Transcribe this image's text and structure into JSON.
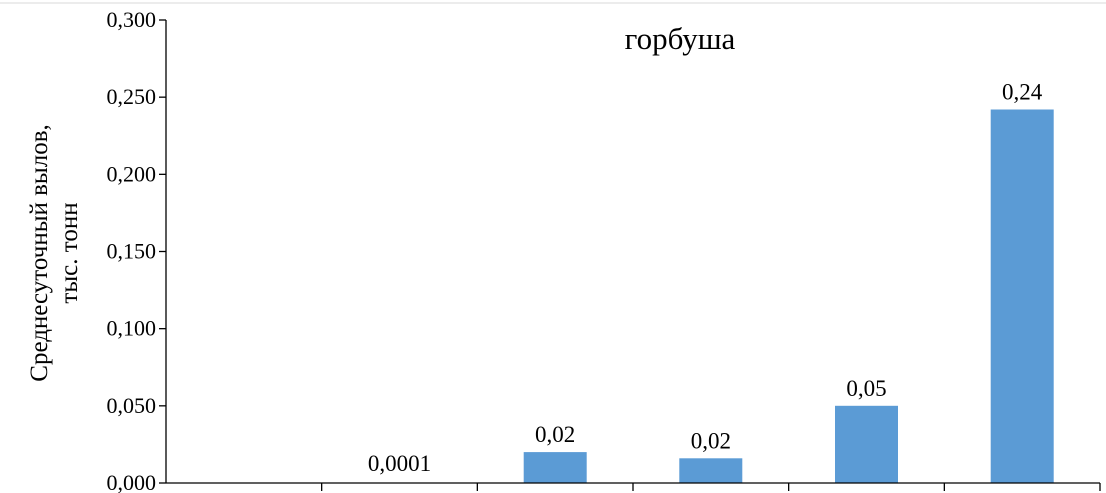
{
  "chart_data": {
    "type": "bar",
    "title": "горбуша",
    "ylabel_lines": [
      "Среднесуточный  вылов,",
      "тыс. тонн"
    ],
    "xlabel": "",
    "categories": [
      "",
      "",
      "",
      "",
      "",
      ""
    ],
    "values": [
      0,
      0.0001,
      0.02,
      0.016,
      0.05,
      0.242
    ],
    "data_labels": [
      "",
      "0,0001",
      "0,02",
      "0,02",
      "0,05",
      "0,24"
    ],
    "ylim": [
      0,
      0.3
    ],
    "yticks": [
      0,
      0.05,
      0.1,
      0.15,
      0.2,
      0.25,
      0.3
    ],
    "ytick_labels": [
      "0,000",
      "0,050",
      "0,100",
      "0,150",
      "0,200",
      "0,250",
      "0,300"
    ],
    "grid": false,
    "legend": "none",
    "bar_color": "#5b9bd5"
  }
}
